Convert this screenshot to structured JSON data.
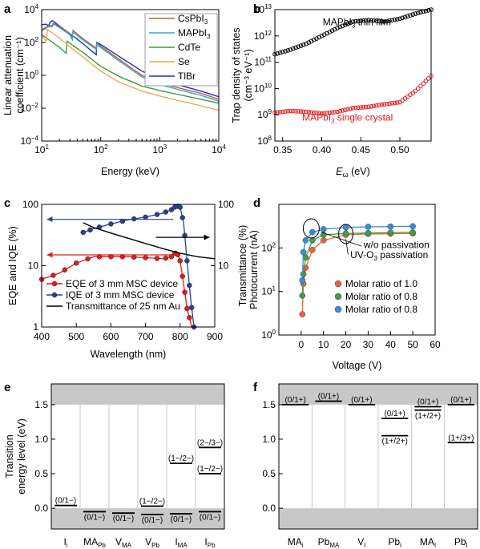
{
  "chart_data": [
    {
      "id": "a",
      "type": "line",
      "panel_label": "a",
      "xscale": "log",
      "yscale": "log",
      "xlim": [
        10,
        10000
      ],
      "ylim": [
        0.0001,
        10000
      ],
      "xlabel": "Energy (keV)",
      "ylabel_lines": [
        "Linear attenuation",
        "coefficient (cm⁻¹)"
      ],
      "xticks": [
        {
          "v": 10,
          "base": "10",
          "exp": "1"
        },
        {
          "v": 100,
          "base": "10",
          "exp": "2"
        },
        {
          "v": 1000,
          "base": "10",
          "exp": "3"
        },
        {
          "v": 10000,
          "base": "10",
          "exp": "4"
        }
      ],
      "yticks": [
        {
          "v": 0.0001,
          "base": "10",
          "exp": "−4"
        },
        {
          "v": 0.01,
          "base": "10",
          "exp": "−2"
        },
        {
          "v": 1,
          "base": "10",
          "exp": "0"
        },
        {
          "v": 100,
          "base": "10",
          "exp": "2"
        },
        {
          "v": 10000,
          "base": "10",
          "exp": "4"
        }
      ],
      "legend": {
        "position": "top-right",
        "entries": [
          {
            "name": "CsPbI",
            "sub": "3",
            "color": "#c0622a"
          },
          {
            "name": "MAPbI",
            "sub": "3",
            "color": "#3aa6c4"
          },
          {
            "name": "CdTe",
            "sub": "",
            "color": "#3a9c3a"
          },
          {
            "name": "Se",
            "sub": "",
            "color": "#f2a45a"
          },
          {
            "name": "TlBr",
            "sub": "",
            "color": "#1a2fd0"
          }
        ]
      },
      "series": [
        {
          "name": "TlBr",
          "color": "#1a2fd0",
          "x": [
            10,
            12,
            13,
            14,
            15,
            16,
            20,
            30,
            50,
            84,
            85.5,
            100,
            200,
            500,
            1000,
            2000,
            5000,
            10000
          ],
          "y": [
            1200,
            1300,
            1000,
            1800,
            2100,
            1900,
            1000,
            350,
            85,
            18,
            100,
            75,
            15,
            1.8,
            0.55,
            0.27,
            0.11,
            0.05
          ]
        },
        {
          "name": "CsPbI3",
          "color": "#c0622a",
          "x": [
            10,
            13,
            15,
            16,
            20,
            30,
            33,
            34,
            36,
            50,
            84,
            85.5,
            100,
            200,
            500,
            1000,
            2000,
            5000,
            10000
          ],
          "y": [
            600,
            1000,
            1100,
            1500,
            900,
            350,
            180,
            550,
            450,
            170,
            45,
            90,
            60,
            10,
            1.0,
            0.35,
            0.18,
            0.08,
            0.035
          ]
        },
        {
          "name": "MAPbI3",
          "color": "#3aa6c4",
          "x": [
            10,
            13,
            15,
            16,
            20,
            30,
            33,
            34,
            36,
            50,
            84,
            85.5,
            100,
            200,
            500,
            1000,
            2000,
            5000,
            10000
          ],
          "y": [
            500,
            900,
            900,
            1300,
            800,
            300,
            150,
            450,
            370,
            140,
            38,
            75,
            50,
            8,
            0.8,
            0.28,
            0.14,
            0.06,
            0.027
          ]
        },
        {
          "name": "CdTe",
          "color": "#3a9c3a",
          "x": [
            10,
            20,
            26,
            27,
            30,
            32,
            50,
            100,
            200,
            500,
            1000,
            2000,
            5000,
            10000
          ],
          "y": [
            300,
            50,
            22,
            120,
            90,
            75,
            25,
            3.5,
            0.9,
            0.22,
            0.12,
            0.07,
            0.035,
            0.02
          ]
        },
        {
          "name": "Se",
          "color": "#f2a45a",
          "x": [
            10,
            12,
            12.5,
            15,
            20,
            30,
            50,
            100,
            200,
            500,
            1000,
            2000,
            5000,
            10000
          ],
          "y": [
            250,
            120,
            600,
            400,
            180,
            55,
            13,
            1.8,
            0.4,
            0.11,
            0.055,
            0.03,
            0.014,
            0.0075
          ]
        }
      ]
    },
    {
      "id": "b",
      "type": "scatter",
      "panel_label": "b",
      "xscale": "linear",
      "yscale": "log",
      "xlim": [
        0.34,
        0.54
      ],
      "ylim": [
        100000000.0,
        10000000000000.0
      ],
      "xlabel": "E",
      "xlabel_sub": "ω",
      "xlabel_suffix": " (eV)",
      "ylabel_lines": [
        "Trap density of states",
        "(cm⁻³ eV⁻¹)"
      ],
      "xticks": [
        0.35,
        0.4,
        0.45,
        0.5
      ],
      "yticks": [
        {
          "v": 100000000.0,
          "base": "10",
          "exp": "8"
        },
        {
          "v": 1000000000.0,
          "base": "10",
          "exp": "9"
        },
        {
          "v": 10000000000.0,
          "base": "10",
          "exp": "10"
        },
        {
          "v": 100000000000.0,
          "base": "10",
          "exp": "11"
        },
        {
          "v": 1000000000000.0,
          "base": "10",
          "exp": "12"
        },
        {
          "v": 10000000000000.0,
          "base": "10",
          "exp": "13"
        }
      ],
      "annotations": [
        {
          "text": "MAPbI",
          "sub": "3",
          "suffix": " thin film",
          "color": "#000000",
          "x": 0.445,
          "y": 2500000000000.0
        },
        {
          "text": "MAPbI",
          "sub": "3",
          "suffix": " single crystal",
          "color": "#e31a1c",
          "x": 0.433,
          "y": 600000000.0
        }
      ],
      "series": [
        {
          "name": "MAPbI3 thin film",
          "color": "#000000",
          "x": [
            0.34,
            0.36,
            0.38,
            0.4,
            0.42,
            0.44,
            0.46,
            0.48,
            0.5,
            0.52,
            0.54
          ],
          "y": [
            200000000000.0,
            300000000000.0,
            500000000000.0,
            1000000000000.0,
            2000000000000.0,
            3500000000000.0,
            4000000000000.0,
            3500000000000.0,
            4500000000000.0,
            7000000000000.0,
            10000000000000.0
          ]
        },
        {
          "name": "MAPbI3 single crystal",
          "color": "#e31a1c",
          "x": [
            0.34,
            0.36,
            0.38,
            0.4,
            0.42,
            0.44,
            0.46,
            0.48,
            0.5,
            0.52,
            0.54
          ],
          "y": [
            1200000000.0,
            1400000000.0,
            1300000000.0,
            1100000000.0,
            1300000000.0,
            1800000000.0,
            2000000000.0,
            2500000000.0,
            3000000000.0,
            8000000000.0,
            30000000000.0
          ]
        }
      ]
    },
    {
      "id": "c",
      "type": "line",
      "panel_label": "c",
      "xscale": "linear",
      "yscale": "log",
      "xlim": [
        400,
        900
      ],
      "ylim": [
        1,
        100
      ],
      "y2lim": [
        1,
        100
      ],
      "xlabel": "Wavelength (nm)",
      "ylabel": "EQE and IQE (%)",
      "y2label": "Transmittance (%)",
      "xticks": [
        400,
        500,
        600,
        700,
        800,
        900
      ],
      "yticks": [
        {
          "v": 1,
          "label": "1"
        },
        {
          "v": 10,
          "label": "10"
        },
        {
          "v": 100,
          "label": "100"
        }
      ],
      "y2ticks": [
        {
          "v": 10,
          "label": "10"
        },
        {
          "v": 100,
          "label": "100"
        }
      ],
      "legend": {
        "position": "bottom-left",
        "entries": [
          {
            "name": "EQE of 3 mm MSC device",
            "color": "#e31a1c"
          },
          {
            "name": "IQE of 3 mm MSC device",
            "color": "#2c3e9a"
          },
          {
            "name": "Transmittance of 25 nm Au",
            "color": "#000000"
          }
        ]
      },
      "series": [
        {
          "name": "EQE of 3 mm MSC device",
          "color": "#e31a1c",
          "x": [
            400,
            450,
            500,
            550,
            600,
            650,
            700,
            750,
            775,
            790,
            800,
            810,
            820,
            830,
            840
          ],
          "y": [
            6,
            7.5,
            11,
            14,
            14,
            14,
            13.5,
            13,
            14,
            17,
            12,
            5,
            2,
            1.2,
            0.6
          ]
        },
        {
          "name": "IQE of 3 mm MSC device",
          "color": "#2c3e9a",
          "x": [
            520,
            550,
            600,
            650,
            700,
            750,
            775,
            790,
            800,
            810,
            820,
            830,
            840
          ],
          "y": [
            35,
            40,
            48,
            56,
            62,
            72,
            82,
            95,
            90,
            50,
            12,
            3,
            1
          ]
        },
        {
          "name": "Transmittance of 25 nm Au",
          "color": "#000000",
          "x": [
            520,
            550,
            600,
            650,
            700,
            750,
            800,
            850,
            900
          ],
          "y": [
            50,
            42,
            34,
            28,
            23,
            19,
            16,
            14,
            13
          ]
        }
      ],
      "arrows": [
        {
          "from_x": 780,
          "to_x": 415,
          "y": 57,
          "color": "#2c3e9a"
        },
        {
          "from_x": 790,
          "to_x": 415,
          "y": 15,
          "color": "#e31a1c"
        },
        {
          "from_x": 730,
          "to_x": 885,
          "y": 29,
          "color": "#000000"
        }
      ]
    },
    {
      "id": "d",
      "type": "scatter",
      "panel_label": "d",
      "xscale": "linear",
      "yscale": "log",
      "xlim": [
        -10,
        60
      ],
      "ylim": [
        1,
        1000
      ],
      "xlabel": "Voltage (V)",
      "ylabel": "Photocurrent (nA)",
      "xticks": [
        0,
        10,
        20,
        30,
        40,
        50,
        60
      ],
      "yticks": [
        {
          "v": 1,
          "base": "10",
          "exp": "0"
        },
        {
          "v": 10,
          "base": "10",
          "exp": "1"
        },
        {
          "v": 100,
          "base": "10",
          "exp": "2"
        }
      ],
      "annotations": [
        {
          "text": "w/o passivation",
          "x": 28,
          "y": 100
        },
        {
          "text": "UV-O",
          "sub": "3",
          "suffix": " passivation",
          "x": 22,
          "y": 58
        }
      ],
      "legend": {
        "position": "center-right",
        "entries": [
          {
            "name": "Molar ratio of 1.0",
            "color": "#e8623a"
          },
          {
            "name": "Molar ratio of 0.8",
            "color": "#3aa04a"
          },
          {
            "name": "Molar ratio of 0.8",
            "color": "#3a8ad8"
          }
        ]
      },
      "series": [
        {
          "name": "Molar ratio of 1.0",
          "color": "#e8623a",
          "x": [
            0.5,
            1,
            2,
            5,
            10,
            20,
            30,
            40,
            50
          ],
          "y": [
            3,
            15,
            35,
            90,
            150,
            200,
            210,
            212,
            215
          ]
        },
        {
          "name": "Molar ratio of 0.8",
          "color": "#3aa04a",
          "x": [
            0.5,
            1,
            2,
            5,
            10,
            20,
            30,
            40,
            50
          ],
          "y": [
            8,
            25,
            60,
            150,
            200,
            215,
            220,
            225,
            228
          ]
        },
        {
          "name": "Molar ratio of 0.8",
          "color": "#3a8ad8",
          "x": [
            0.5,
            1,
            2,
            5,
            10,
            20,
            30,
            40,
            50
          ],
          "y": [
            18,
            80,
            150,
            230,
            270,
            295,
            305,
            310,
            315
          ]
        }
      ]
    },
    {
      "id": "e",
      "type": "level-diagram",
      "panel_label": "e",
      "ylim": [
        -0.3,
        1.8
      ],
      "band_top": 1.5,
      "band_bottom": 0.0,
      "ylabel_lines": [
        "Transition",
        "energy level (eV)"
      ],
      "yticks": [
        {
          "v": 0.0,
          "label": "0.0"
        },
        {
          "v": 0.5,
          "label": "0.5"
        },
        {
          "v": 1.0,
          "label": "1.0"
        },
        {
          "v": 1.5,
          "label": "1.5"
        }
      ],
      "defects": [
        {
          "label": "I",
          "sub": "i",
          "levels": [
            {
              "e": 0.04,
              "text": "(0/1−)",
              "pos": "above"
            }
          ]
        },
        {
          "label": "MA",
          "sub": "Pb",
          "levels": [
            {
              "e": -0.05,
              "text": "(0/1−)",
              "pos": "below"
            }
          ]
        },
        {
          "label": "V",
          "sub": "MA",
          "levels": [
            {
              "e": -0.07,
              "text": "(0/1−)",
              "pos": "below"
            }
          ]
        },
        {
          "label": "V",
          "sub": "Pb",
          "levels": [
            {
              "e": 0.03,
              "text": "(1−/2−)",
              "pos": "above"
            },
            {
              "e": -0.09,
              "text": "(0/1−)",
              "pos": "below"
            }
          ]
        },
        {
          "label": "I",
          "sub": "MA",
          "levels": [
            {
              "e": 0.65,
              "text": "(1−/2−)",
              "pos": "above"
            },
            {
              "e": -0.08,
              "text": "(0/1−)",
              "pos": "below"
            }
          ]
        },
        {
          "label": "I",
          "sub": "Pb",
          "levels": [
            {
              "e": 0.88,
              "text": "(2−/3−)",
              "pos": "above"
            },
            {
              "e": 0.5,
              "text": "(1−/2−)",
              "pos": "above"
            },
            {
              "e": -0.05,
              "text": "(0/1−)",
              "pos": "below"
            }
          ]
        }
      ]
    },
    {
      "id": "f",
      "type": "level-diagram",
      "panel_label": "f",
      "ylim": [
        -0.3,
        1.8
      ],
      "band_top": 1.5,
      "band_bottom": 0.0,
      "yticks": [
        {
          "v": 0.0,
          "label": "0.0"
        },
        {
          "v": 0.5,
          "label": "0.5"
        },
        {
          "v": 1.0,
          "label": "1.0"
        },
        {
          "v": 1.5,
          "label": "1.5"
        }
      ],
      "defects": [
        {
          "label": "MA",
          "sub": "i",
          "levels": [
            {
              "e": 1.5,
              "text": "(0/1+)",
              "pos": "above"
            }
          ]
        },
        {
          "label": "Pb",
          "sub": "MA",
          "levels": [
            {
              "e": 1.55,
              "text": "(0/1+)",
              "pos": "above"
            }
          ]
        },
        {
          "label": "V",
          "sub": "I",
          "levels": [
            {
              "e": 1.5,
              "text": "(0/1+)",
              "pos": "above"
            }
          ]
        },
        {
          "label": "Pb",
          "sub": "i",
          "levels": [
            {
              "e": 1.3,
              "text": "(0/1+)",
              "pos": "above"
            },
            {
              "e": 1.05,
              "text": "(1+/2+)",
              "pos": "below"
            }
          ]
        },
        {
          "label": "MA",
          "sub": "I",
          "levels": [
            {
              "e": 1.47,
              "text": "(0/1+)",
              "pos": "above"
            },
            {
              "e": 1.42,
              "text": "(1+/2+)",
              "pos": "below"
            }
          ]
        },
        {
          "label": "Pb",
          "sub": "I",
          "levels": [
            {
              "e": 1.5,
              "text": "(0/1+)",
              "pos": "above"
            },
            {
              "e": 0.95,
              "text": "(1+/3+)",
              "pos": "above"
            }
          ]
        }
      ]
    }
  ]
}
